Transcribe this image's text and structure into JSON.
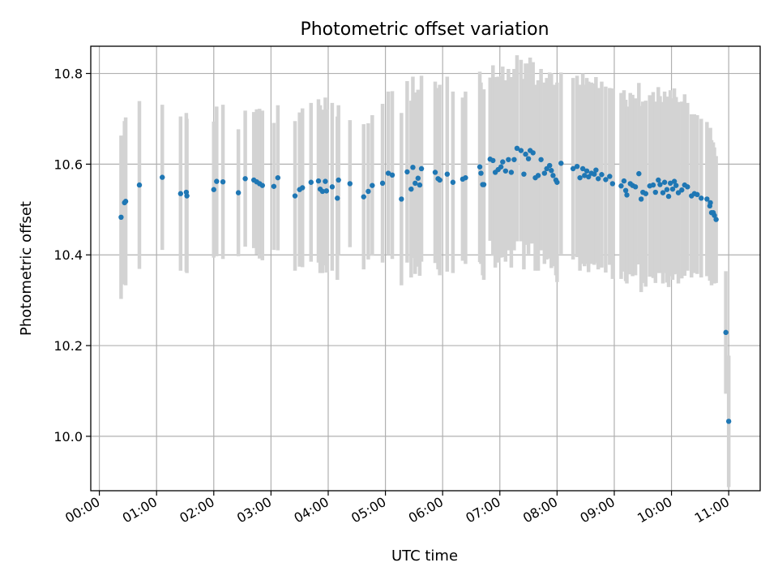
{
  "chart_data": {
    "type": "scatter",
    "title": "Photometric offset variation",
    "xlabel": "UTC time",
    "ylabel": "Photometric offset",
    "xlim": [
      -0.15,
      11.55
    ],
    "ylim": [
      9.88,
      10.86
    ],
    "grid": true,
    "x_unit": "hours",
    "x_ticks": [
      0,
      1,
      2,
      3,
      4,
      5,
      6,
      7,
      8,
      9,
      10,
      11
    ],
    "x_tick_labels": [
      "00:00",
      "01:00",
      "02:00",
      "03:00",
      "04:00",
      "05:00",
      "06:00",
      "07:00",
      "08:00",
      "09:00",
      "10:00",
      "11:00"
    ],
    "y_ticks": [
      10.0,
      10.2,
      10.4,
      10.6,
      10.8
    ],
    "y_tick_labels": [
      "10.0",
      "10.2",
      "10.4",
      "10.6",
      "10.8"
    ],
    "colors": {
      "point": "#1f77b4",
      "errorbar": "#d3d3d3"
    },
    "series": [
      {
        "name": "Photometric offset",
        "x": [
          0.38,
          0.44,
          0.46,
          0.7,
          1.1,
          1.42,
          1.52,
          1.53,
          2.0,
          2.05,
          2.16,
          2.43,
          2.55,
          2.7,
          2.75,
          2.8,
          2.85,
          3.05,
          3.12,
          3.42,
          3.5,
          3.55,
          3.7,
          3.83,
          3.86,
          3.9,
          3.95,
          3.97,
          4.07,
          4.16,
          4.18,
          4.38,
          4.62,
          4.7,
          4.77,
          4.95,
          5.05,
          5.12,
          5.28,
          5.38,
          5.45,
          5.48,
          5.52,
          5.57,
          5.6,
          5.63,
          5.87,
          5.92,
          5.95,
          6.08,
          6.18,
          6.35,
          6.4,
          6.65,
          6.67,
          6.7,
          6.72,
          6.83,
          6.88,
          6.92,
          6.97,
          7.02,
          7.05,
          7.1,
          7.15,
          7.2,
          7.25,
          7.3,
          7.37,
          7.42,
          7.45,
          7.5,
          7.53,
          7.58,
          7.62,
          7.67,
          7.72,
          7.78,
          7.82,
          7.87,
          7.9,
          7.93,
          7.98,
          8.0,
          8.07,
          8.28,
          8.35,
          8.4,
          8.45,
          8.48,
          8.52,
          8.55,
          8.6,
          8.65,
          8.68,
          8.72,
          8.78,
          8.85,
          8.92,
          8.97,
          9.12,
          9.17,
          9.2,
          9.22,
          9.28,
          9.32,
          9.37,
          9.43,
          9.47,
          9.5,
          9.55,
          9.62,
          9.68,
          9.72,
          9.77,
          9.8,
          9.85,
          9.88,
          9.92,
          9.95,
          9.98,
          10.02,
          10.05,
          10.08,
          10.12,
          10.18,
          10.23,
          10.28,
          10.35,
          10.4,
          10.45,
          10.52,
          10.62,
          10.67,
          10.68,
          10.7,
          10.73,
          10.75,
          10.78,
          10.95,
          11.0
        ],
        "y": [
          10.483,
          10.515,
          10.518,
          10.554,
          10.571,
          10.535,
          10.538,
          10.53,
          10.544,
          10.562,
          10.561,
          10.537,
          10.568,
          10.565,
          10.561,
          10.557,
          10.553,
          10.551,
          10.57,
          10.53,
          10.544,
          10.548,
          10.56,
          10.563,
          10.545,
          10.54,
          10.562,
          10.541,
          10.55,
          10.525,
          10.565,
          10.557,
          10.528,
          10.54,
          10.553,
          10.558,
          10.58,
          10.576,
          10.523,
          10.583,
          10.545,
          10.593,
          10.558,
          10.569,
          10.554,
          10.59,
          10.582,
          10.568,
          10.565,
          10.578,
          10.56,
          10.567,
          10.57,
          10.594,
          10.58,
          10.555,
          10.555,
          10.611,
          10.608,
          10.582,
          10.588,
          10.594,
          10.605,
          10.585,
          10.61,
          10.582,
          10.61,
          10.635,
          10.63,
          10.578,
          10.622,
          10.612,
          10.63,
          10.625,
          10.57,
          10.575,
          10.61,
          10.58,
          10.59,
          10.597,
          10.586,
          10.575,
          10.565,
          10.56,
          10.602,
          10.59,
          10.595,
          10.57,
          10.59,
          10.575,
          10.585,
          10.572,
          10.58,
          10.578,
          10.587,
          10.568,
          10.577,
          10.566,
          10.573,
          10.557,
          10.552,
          10.563,
          10.542,
          10.532,
          10.557,
          10.553,
          10.55,
          10.579,
          10.523,
          10.538,
          10.535,
          10.552,
          10.554,
          10.538,
          10.565,
          10.555,
          10.537,
          10.56,
          10.544,
          10.529,
          10.558,
          10.545,
          10.562,
          10.553,
          10.537,
          10.543,
          10.554,
          10.55,
          10.53,
          10.535,
          10.533,
          10.525,
          10.523,
          10.508,
          10.515,
          10.493,
          10.493,
          10.487,
          10.478,
          10.229,
          10.033
        ],
        "error": [
          0.18,
          0.18,
          0.185,
          0.185,
          0.16,
          0.17,
          0.175,
          0.17,
          0.15,
          0.165,
          0.17,
          0.14,
          0.15,
          0.15,
          0.16,
          0.165,
          0.165,
          0.14,
          0.16,
          0.165,
          0.17,
          0.175,
          0.175,
          0.18,
          0.185,
          0.18,
          0.185,
          0.18,
          0.185,
          0.18,
          0.165,
          0.14,
          0.16,
          0.15,
          0.155,
          0.175,
          0.18,
          0.185,
          0.19,
          0.2,
          0.195,
          0.2,
          0.2,
          0.195,
          0.2,
          0.205,
          0.2,
          0.2,
          0.21,
          0.215,
          0.2,
          0.18,
          0.19,
          0.21,
          0.2,
          0.2,
          0.21,
          0.18,
          0.21,
          0.21,
          0.205,
          0.2,
          0.21,
          0.2,
          0.2,
          0.21,
          0.2,
          0.205,
          0.2,
          0.21,
          0.2,
          0.21,
          0.205,
          0.2,
          0.205,
          0.21,
          0.2,
          0.2,
          0.2,
          0.205,
          0.215,
          0.2,
          0.21,
          0.22,
          0.2,
          0.2,
          0.2,
          0.205,
          0.21,
          0.2,
          0.205,
          0.21,
          0.2,
          0.2,
          0.205,
          0.2,
          0.205,
          0.205,
          0.195,
          0.21,
          0.205,
          0.2,
          0.2,
          0.195,
          0.2,
          0.2,
          0.195,
          0.2,
          0.205,
          0.2,
          0.205,
          0.2,
          0.205,
          0.2,
          0.205,
          0.195,
          0.2,
          0.2,
          0.205,
          0.2,
          0.205,
          0.2,
          0.205,
          0.195,
          0.2,
          0.195,
          0.2,
          0.185,
          0.18,
          0.175,
          0.175,
          0.175,
          0.17,
          0.165,
          0.165,
          0.16,
          0.155,
          0.15,
          0.14,
          0.135,
          0.145
        ]
      }
    ]
  }
}
